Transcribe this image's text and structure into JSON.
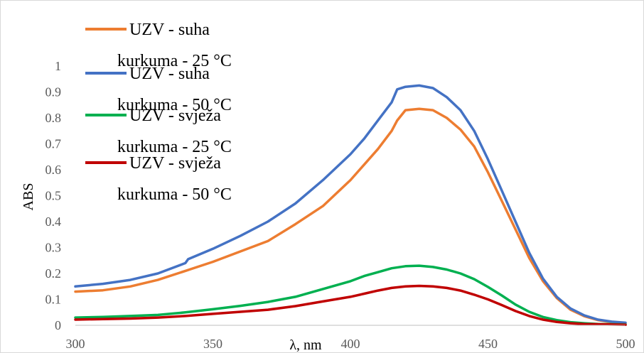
{
  "chart_data": {
    "type": "line",
    "title": "",
    "xlabel": "λ, nm",
    "ylabel": "ABS",
    "xlim": [
      300,
      500
    ],
    "ylim": [
      0,
      1
    ],
    "x_ticks": [
      300,
      350,
      400,
      450,
      500
    ],
    "y_ticks": [
      0,
      0.1,
      0.2,
      0.3,
      0.4,
      0.5,
      0.6,
      0.7,
      0.8,
      0.9,
      1
    ],
    "y_tick_labels": [
      "0",
      "0.1",
      "0.2",
      "0.3",
      "0.4",
      "0.5",
      "0.6",
      "0.7",
      "0.8",
      "0.9",
      "1"
    ],
    "grid": false,
    "legend_position": "top-left",
    "series": [
      {
        "name_lines": [
          "UZV - suha",
          "kurkuma - 25 °C"
        ],
        "color": "#ED7D31",
        "x": [
          300,
          310,
          320,
          330,
          340,
          350,
          360,
          370,
          380,
          390,
          400,
          405,
          410,
          415,
          417,
          420,
          425,
          430,
          435,
          440,
          445,
          450,
          455,
          460,
          465,
          470,
          475,
          480,
          485,
          490,
          495,
          500
        ],
        "y": [
          0.13,
          0.135,
          0.15,
          0.175,
          0.21,
          0.245,
          0.285,
          0.325,
          0.39,
          0.46,
          0.56,
          0.62,
          0.68,
          0.75,
          0.79,
          0.83,
          0.835,
          0.83,
          0.8,
          0.755,
          0.69,
          0.59,
          0.48,
          0.37,
          0.26,
          0.17,
          0.105,
          0.06,
          0.035,
          0.02,
          0.012,
          0.008
        ]
      },
      {
        "name_lines": [
          "UZV - suha",
          "kurkuma - 50 °C"
        ],
        "color": "#4472C4",
        "x": [
          300,
          310,
          320,
          330,
          340,
          341,
          350,
          360,
          370,
          380,
          390,
          400,
          405,
          410,
          415,
          417,
          420,
          425,
          430,
          435,
          440,
          445,
          450,
          455,
          460,
          465,
          470,
          475,
          480,
          485,
          490,
          495,
          500
        ],
        "y": [
          0.15,
          0.16,
          0.175,
          0.2,
          0.24,
          0.255,
          0.295,
          0.345,
          0.4,
          0.47,
          0.56,
          0.66,
          0.72,
          0.79,
          0.86,
          0.91,
          0.92,
          0.925,
          0.915,
          0.88,
          0.83,
          0.75,
          0.64,
          0.52,
          0.4,
          0.28,
          0.18,
          0.11,
          0.065,
          0.038,
          0.022,
          0.014,
          0.01
        ]
      },
      {
        "name_lines": [
          "UZV - svježa",
          "kurkuma - 25 °C"
        ],
        "color": "#00B050",
        "x": [
          300,
          310,
          320,
          330,
          340,
          350,
          360,
          370,
          380,
          390,
          400,
          405,
          410,
          415,
          420,
          425,
          430,
          435,
          440,
          445,
          450,
          455,
          460,
          465,
          470,
          475,
          480,
          485,
          490,
          495,
          500
        ],
        "y": [
          0.03,
          0.032,
          0.036,
          0.04,
          0.05,
          0.062,
          0.075,
          0.09,
          0.11,
          0.14,
          0.17,
          0.19,
          0.205,
          0.22,
          0.228,
          0.23,
          0.225,
          0.215,
          0.2,
          0.178,
          0.148,
          0.115,
          0.08,
          0.052,
          0.032,
          0.02,
          0.012,
          0.008,
          0.005,
          0.004,
          0.003
        ]
      },
      {
        "name_lines": [
          "UZV - svježa",
          "kurkuma - 50 °C"
        ],
        "color": "#C00000",
        "x": [
          300,
          310,
          320,
          330,
          340,
          350,
          360,
          370,
          380,
          390,
          400,
          405,
          410,
          415,
          420,
          425,
          430,
          435,
          440,
          445,
          450,
          455,
          460,
          465,
          470,
          475,
          480,
          485,
          490,
          495,
          500
        ],
        "y": [
          0.022,
          0.024,
          0.026,
          0.03,
          0.036,
          0.044,
          0.052,
          0.06,
          0.074,
          0.092,
          0.11,
          0.122,
          0.134,
          0.144,
          0.15,
          0.152,
          0.15,
          0.144,
          0.134,
          0.118,
          0.1,
          0.078,
          0.055,
          0.036,
          0.022,
          0.013,
          0.008,
          0.005,
          0.004,
          0.003,
          0.002
        ]
      }
    ]
  }
}
